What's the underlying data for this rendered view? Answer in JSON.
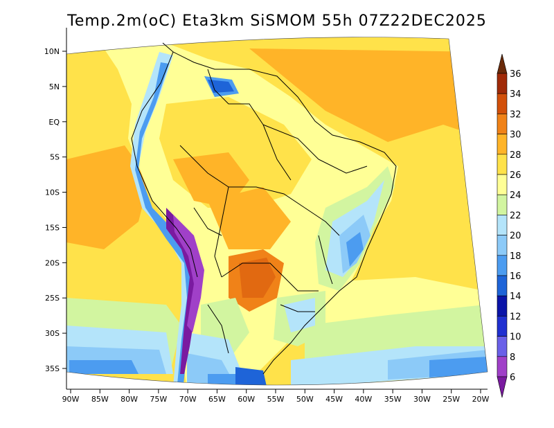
{
  "title": "Temp.2m(oC) Eta3km SiSMOM 55h 07Z22DEC2025",
  "map": {
    "lat_ticks": [
      "10N",
      "5N",
      "EQ",
      "5S",
      "10S",
      "15S",
      "20S",
      "25S",
      "30S",
      "35S"
    ],
    "lon_ticks": [
      "90W",
      "85W",
      "80W",
      "75W",
      "70W",
      "65W",
      "60W",
      "55W",
      "50W",
      "45W",
      "40W",
      "35W",
      "30W",
      "25W",
      "20W"
    ],
    "lat_values": [
      10,
      5,
      0,
      -5,
      -10,
      -15,
      -20,
      -25,
      -30,
      -35
    ],
    "lon_values": [
      -90,
      -85,
      -80,
      -75,
      -70,
      -65,
      -60,
      -55,
      -50,
      -45,
      -40,
      -35,
      -30,
      -25,
      -20
    ],
    "lat_range": [
      -38,
      12
    ],
    "lon_range": [
      -90,
      -20
    ]
  },
  "colorbar": {
    "levels": [
      "6",
      "8",
      "10",
      "12",
      "14",
      "16",
      "18",
      "20",
      "22",
      "24",
      "26",
      "28",
      "30",
      "32",
      "34",
      "36"
    ],
    "colors": [
      "#7a1aa0",
      "#a040c8",
      "#6a60e8",
      "#2030d0",
      "#0a14a8",
      "#1e64d8",
      "#4c9cf0",
      "#8ccaf8",
      "#b4e4fa",
      "#d2f5a0",
      "#ffff96",
      "#ffe24a",
      "#ffb428",
      "#f08218",
      "#d2500a",
      "#a02a08",
      "#6a2a0a"
    ]
  }
}
